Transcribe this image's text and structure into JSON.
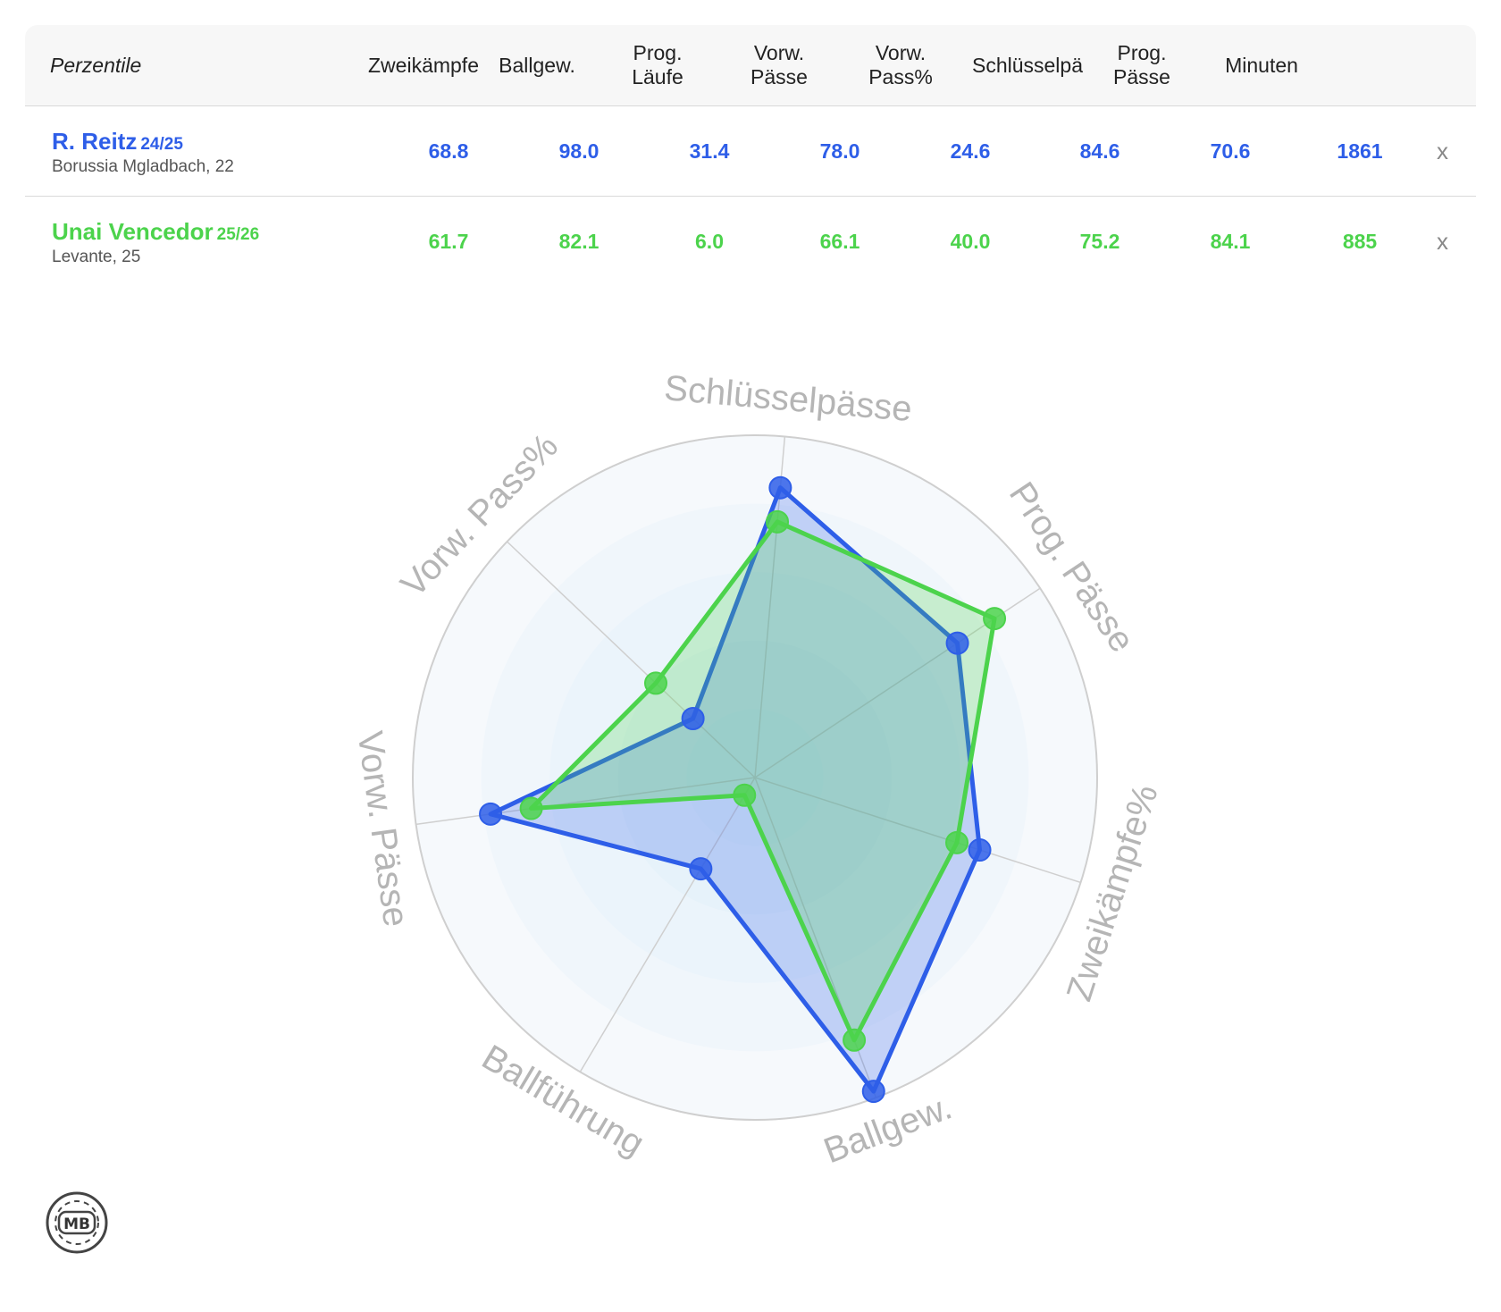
{
  "table": {
    "header": {
      "label": "Perzentile",
      "columns": [
        "Zweikämpfe",
        "Ballgew.",
        "Prog.\nLäufe",
        "Vorw.\nPässe",
        "Vorw.\nPass%",
        "Schlüsselpä",
        "Prog.\nPässe",
        "Minuten"
      ]
    },
    "players": [
      {
        "name": "R. Reitz",
        "season": "24/25",
        "club": "Borussia Mgladbach, 22",
        "color": "#2e5ee8",
        "values": [
          "68.8",
          "98.0",
          "31.4",
          "78.0",
          "24.6",
          "84.6",
          "70.6",
          "1861"
        ],
        "remove_label": "x"
      },
      {
        "name": "Unai Vencedor",
        "season": "25/26",
        "club": "Levante, 25",
        "color": "#4cd34c",
        "values": [
          "61.7",
          "82.1",
          "6.0",
          "66.1",
          "40.0",
          "75.2",
          "84.1",
          "885"
        ],
        "remove_label": "x"
      }
    ]
  },
  "chart_data": {
    "type": "radar",
    "axes": [
      "Schlüsselpässe",
      "Prog. Pässe",
      "Zweikämpfe%",
      "Ballgew.",
      "Ballführung",
      "Vorw. Pässe",
      "Vorw. Pass%"
    ],
    "range": [
      0,
      100
    ],
    "grid_rings": 5,
    "series": [
      {
        "name": "R. Reitz",
        "color": "#2e5ee8",
        "values": [
          85,
          71,
          69,
          98,
          31,
          78,
          25
        ]
      },
      {
        "name": "Unai Vencedor",
        "color": "#4cd34c",
        "values": [
          75,
          84,
          62,
          82,
          6,
          66,
          40
        ]
      }
    ]
  },
  "logo": {
    "text": "MB"
  }
}
